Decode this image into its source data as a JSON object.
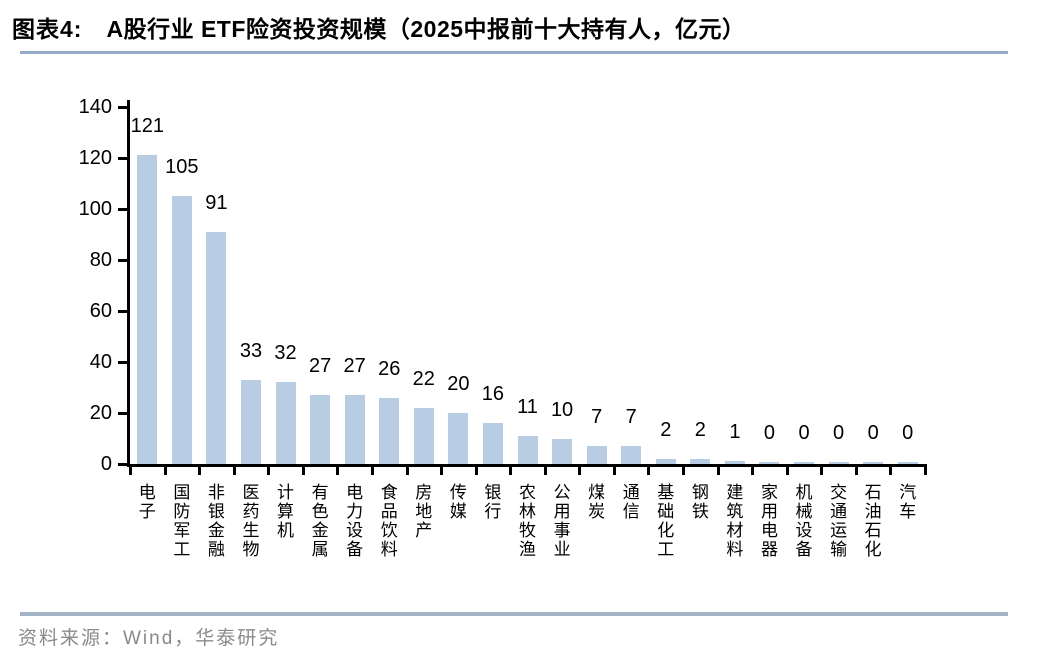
{
  "header": {
    "figure_label": "图表4:",
    "title": "A股行业 ETF险资投资规模（2025中报前十大持有人，亿元）"
  },
  "chart_data": {
    "type": "bar",
    "title": "A股行业 ETF险资投资规模（2025中报前十大持有人，亿元）",
    "categories": [
      "电子",
      "国防军工",
      "非银金融",
      "医药生物",
      "计算机",
      "有色金属",
      "电力设备",
      "食品饮料",
      "房地产",
      "传媒",
      "银行",
      "农林牧渔",
      "公用事业",
      "煤炭",
      "通信",
      "基础化工",
      "钢铁",
      "建筑材料",
      "家用电器",
      "机械设备",
      "交通运输",
      "石油石化",
      "汽车"
    ],
    "values": [
      121,
      105,
      91,
      33,
      32,
      27,
      27,
      26,
      22,
      20,
      16,
      11,
      10,
      7,
      7,
      2,
      2,
      1,
      0,
      0,
      0,
      0,
      0
    ],
    "xlabel": "",
    "ylabel": "",
    "ylim": [
      0,
      140
    ],
    "yticks": [
      0,
      20,
      40,
      60,
      80,
      100,
      120,
      140
    ],
    "grid": false,
    "legend_position": "none",
    "bar_color": "#B8CCE4",
    "value_labels_shown": true
  },
  "footer": {
    "source": "资料来源：Wind，华泰研究"
  },
  "colors": {
    "bar": "#B8CCE4",
    "axis": "#000000",
    "title_underline": "#93ABC9",
    "footer_divider": "#A3B5C6",
    "footer_text": "#8A8A8A"
  }
}
